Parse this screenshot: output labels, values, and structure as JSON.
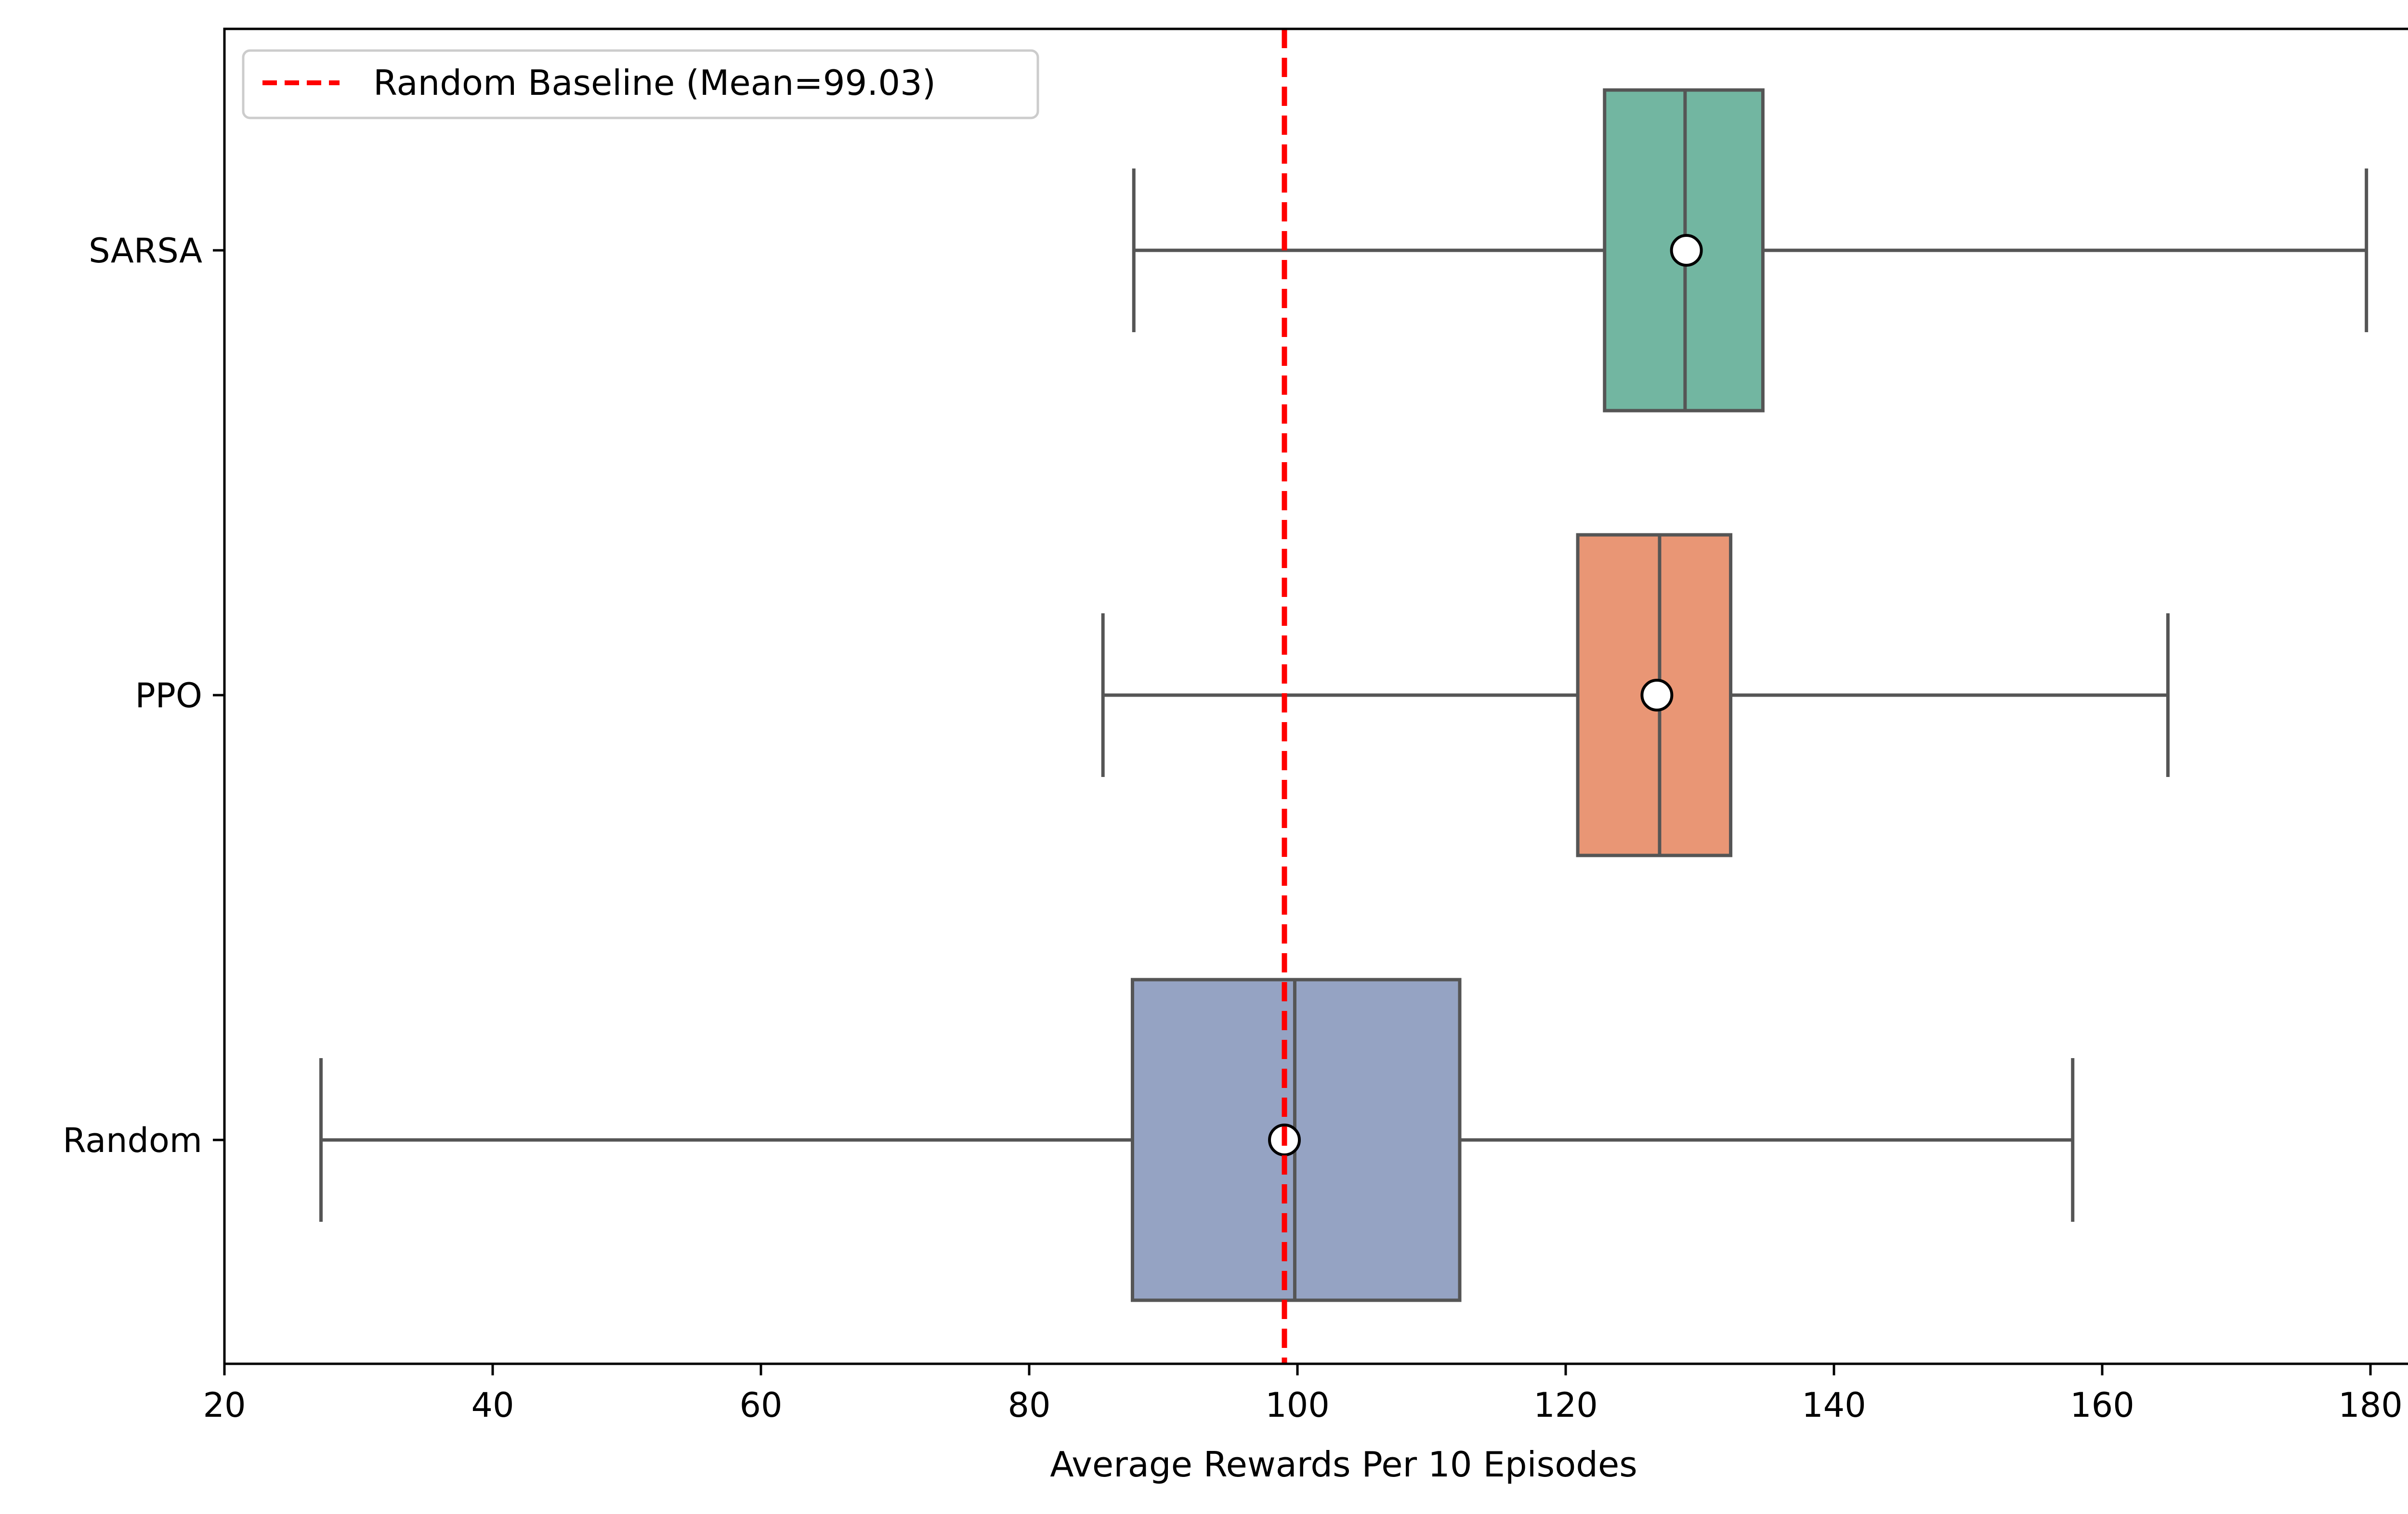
{
  "chart_data": {
    "type": "boxplot",
    "orientation": "horizontal",
    "title": "",
    "xlabel": "Average Rewards Per 10 Episodes",
    "ylabel": "",
    "xlim": [
      20,
      187
    ],
    "xticks": [
      20,
      40,
      60,
      80,
      100,
      120,
      140,
      160,
      180
    ],
    "categories": [
      "SARSA",
      "PPO",
      "Random"
    ],
    "series": [
      {
        "name": "SARSA",
        "color": "#72b6a1",
        "whisker_low": 87.8,
        "q1": 122.9,
        "median": 128.9,
        "q3": 134.7,
        "whisker_high": 179.7,
        "mean": 129.0
      },
      {
        "name": "PPO",
        "color": "#e99675",
        "whisker_low": 85.5,
        "q1": 120.9,
        "median": 127.0,
        "q3": 132.3,
        "whisker_high": 164.9,
        "mean": 126.8
      },
      {
        "name": "Random",
        "color": "#95a3c3",
        "whisker_low": 27.2,
        "q1": 87.7,
        "median": 99.8,
        "q3": 112.1,
        "whisker_high": 157.8,
        "mean": 99.03
      }
    ],
    "reference_line": {
      "value": 99.03,
      "color": "#ff0000",
      "style": "dashed",
      "label": "Random Baseline (Mean=99.03)"
    },
    "legend": {
      "position": "top-left",
      "entries": [
        "Random Baseline (Mean=99.03)"
      ]
    },
    "grid": false,
    "colors": {
      "axis": "#000000",
      "box_edge": "#555555",
      "mean_marker_fill": "#ffffff",
      "mean_marker_edge": "#000000"
    }
  }
}
